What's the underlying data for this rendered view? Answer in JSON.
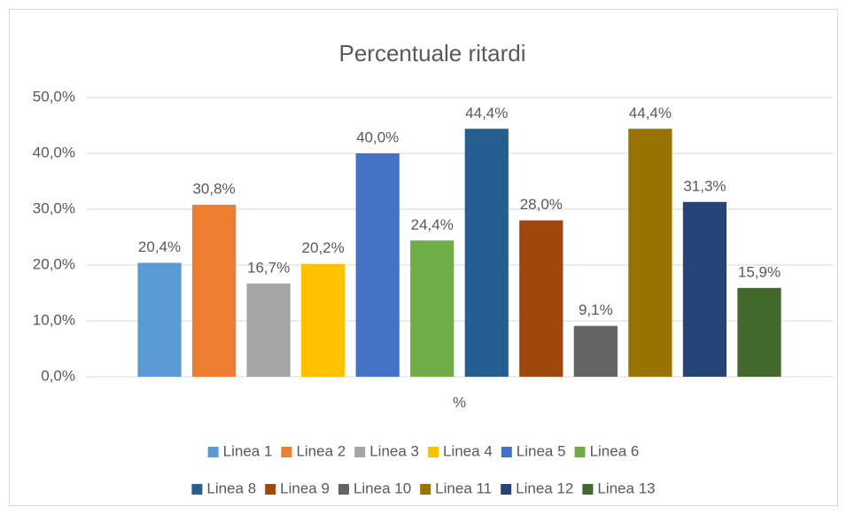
{
  "chart_data": {
    "type": "bar",
    "title": "Percentuale ritardi",
    "categories": [
      "%"
    ],
    "series": [
      {
        "name": "Linea 1",
        "color": "#5b9bd5",
        "values": [
          20.4
        ],
        "value_labels": [
          "20,4%"
        ]
      },
      {
        "name": "Linea 2",
        "color": "#ed7d31",
        "values": [
          30.8
        ],
        "value_labels": [
          "30,8%"
        ]
      },
      {
        "name": "Linea 3",
        "color": "#a5a5a5",
        "values": [
          16.7
        ],
        "value_labels": [
          "16,7%"
        ]
      },
      {
        "name": "Linea 4",
        "color": "#ffc000",
        "values": [
          20.2
        ],
        "value_labels": [
          "20,2%"
        ]
      },
      {
        "name": "Linea 5",
        "color": "#4472c4",
        "values": [
          40.0
        ],
        "value_labels": [
          "40,0%"
        ]
      },
      {
        "name": "Linea 6",
        "color": "#70ad47",
        "values": [
          24.4
        ],
        "value_labels": [
          "24,4%"
        ]
      },
      {
        "name": "Linea 8",
        "color": "#255e91",
        "values": [
          44.4
        ],
        "value_labels": [
          "44,4%"
        ]
      },
      {
        "name": "Linea 9",
        "color": "#9e480e",
        "values": [
          28.0
        ],
        "value_labels": [
          "28,0%"
        ]
      },
      {
        "name": "Linea 10",
        "color": "#636363",
        "values": [
          9.1
        ],
        "value_labels": [
          "9,1%"
        ]
      },
      {
        "name": "Linea 11",
        "color": "#997300",
        "values": [
          44.4
        ],
        "value_labels": [
          "44,4%"
        ]
      },
      {
        "name": "Linea 12",
        "color": "#264478",
        "values": [
          31.3
        ],
        "value_labels": [
          "31,3%"
        ]
      },
      {
        "name": "Linea 13",
        "color": "#43682b",
        "values": [
          15.9
        ],
        "value_labels": [
          "15,9%"
        ]
      }
    ],
    "ylim": [
      0,
      50
    ],
    "yticks": [
      {
        "value": 0,
        "label": "0,0%"
      },
      {
        "value": 10,
        "label": "10,0%"
      },
      {
        "value": 20,
        "label": "20,0%"
      },
      {
        "value": 30,
        "label": "30,0%"
      },
      {
        "value": 40,
        "label": "40,0%"
      },
      {
        "value": 50,
        "label": "50,0%"
      }
    ],
    "grid": true,
    "legend": "bottom"
  }
}
